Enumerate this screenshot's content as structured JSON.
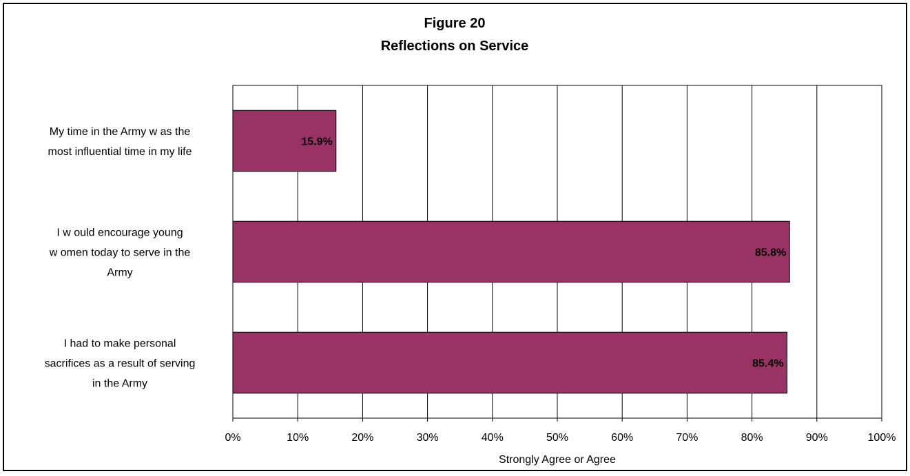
{
  "chart_data": {
    "type": "bar",
    "orientation": "horizontal",
    "title": "Figure 20",
    "subtitle": "Reflections on Service",
    "xlabel": "Strongly Agree or Agree",
    "xlim": [
      0,
      100
    ],
    "x_ticks": [
      "0%",
      "10%",
      "20%",
      "30%",
      "40%",
      "50%",
      "60%",
      "70%",
      "80%",
      "90%",
      "100%"
    ],
    "grid": "vertical",
    "legend": "none",
    "bar_color": "#993366",
    "categories": [
      [
        "My time in the Army w as the",
        "most influential time in my life"
      ],
      [
        "I w ould encourage young",
        "w omen today to serve in the",
        "Army"
      ],
      [
        "I had to make personal",
        "sacrifices as a result of serving",
        "in the Army"
      ]
    ],
    "values": [
      15.9,
      85.8,
      85.4
    ],
    "data_labels": [
      "15.9%",
      "85.8%",
      "85.4%"
    ]
  }
}
